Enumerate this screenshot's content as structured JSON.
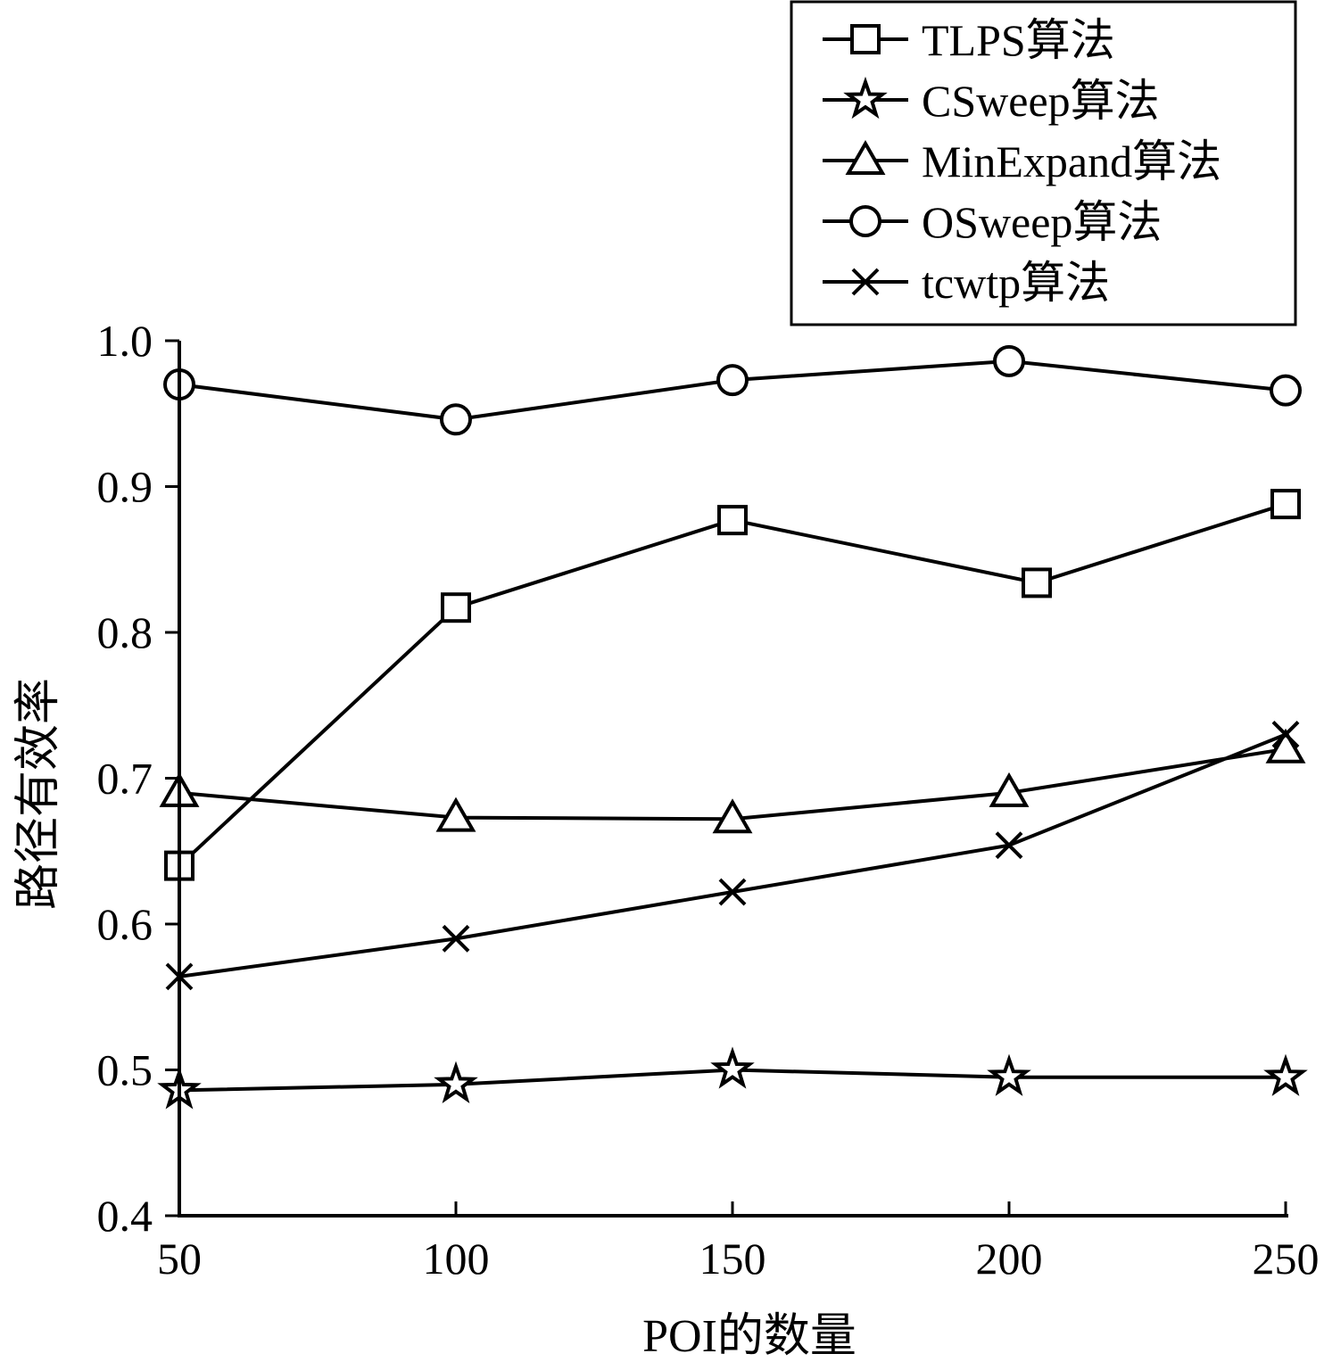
{
  "chart_data": {
    "type": "line",
    "xlabel": "POI的数量",
    "ylabel": "路径有效率",
    "x": [
      50,
      100,
      150,
      200,
      250
    ],
    "xlim": [
      50,
      250
    ],
    "ylim": [
      0.4,
      1.0
    ],
    "xticks": [
      "50",
      "100",
      "150",
      "200",
      "250"
    ],
    "yticks": [
      "0.4",
      "0.5",
      "0.6",
      "0.7",
      "0.8",
      "0.9",
      "1.0"
    ],
    "grid": false,
    "legend_position": "top-right",
    "series": [
      {
        "name": "TLPS算法",
        "marker": "square",
        "x": [
          50,
          100,
          150,
          205,
          250
        ],
        "values": [
          0.64,
          0.817,
          0.877,
          0.834,
          0.888
        ]
      },
      {
        "name": "CSweep算法",
        "marker": "star",
        "x": [
          50,
          100,
          150,
          200,
          250
        ],
        "values": [
          0.486,
          0.49,
          0.5,
          0.495,
          0.495
        ]
      },
      {
        "name": "MinExpand算法",
        "marker": "triangle",
        "x": [
          50,
          100,
          150,
          200,
          250
        ],
        "values": [
          0.69,
          0.673,
          0.672,
          0.69,
          0.72
        ]
      },
      {
        "name": "OSweep算法",
        "marker": "circle",
        "x": [
          50,
          100,
          150,
          200,
          250
        ],
        "values": [
          0.97,
          0.946,
          0.973,
          0.986,
          0.966
        ]
      },
      {
        "name": "tcwtp算法",
        "marker": "x",
        "x": [
          50,
          100,
          150,
          200,
          250
        ],
        "values": [
          0.564,
          0.59,
          0.622,
          0.654,
          0.73
        ]
      }
    ]
  }
}
